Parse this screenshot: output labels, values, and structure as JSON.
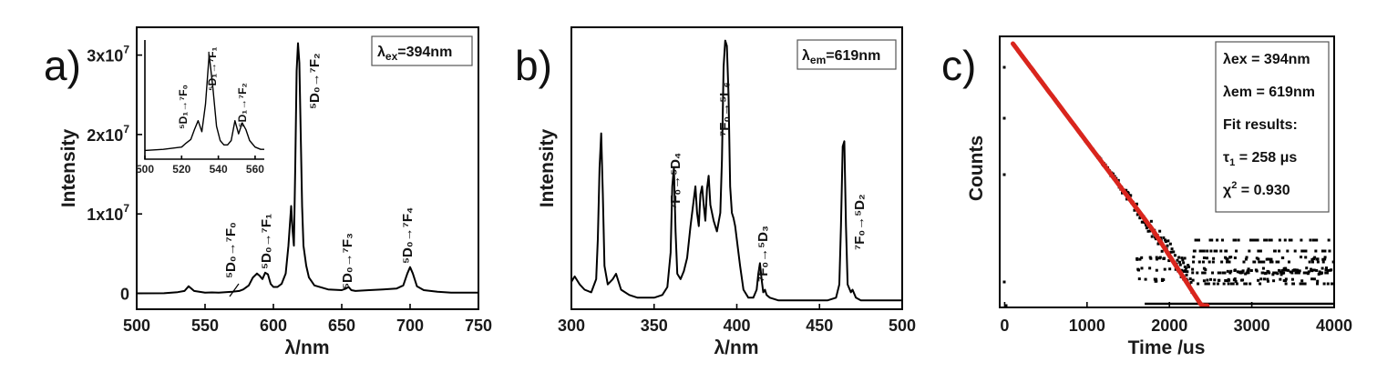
{
  "chart_data": [
    {
      "type": "line",
      "panel_label": "a)",
      "xlabel": "λ/nm",
      "ylabel": "Intensity",
      "xlim": [
        500,
        750
      ],
      "ylim": [
        -2000000,
        33500000
      ],
      "xticks": [
        "500",
        "550",
        "600",
        "650",
        "700",
        "750"
      ],
      "yticks": [
        {
          "value": 0,
          "base": "0",
          "exp": ""
        },
        {
          "value": 10000000,
          "base": "1x10",
          "exp": "7"
        },
        {
          "value": 20000000,
          "base": "2x10",
          "exp": "7"
        },
        {
          "value": 30000000,
          "base": "3x10",
          "exp": "7"
        }
      ],
      "legend": {
        "prefix": "λ",
        "sub": "ex",
        "suffix": "=394nm"
      },
      "series": [
        {
          "x": [
            500,
            520,
            530,
            535,
            538,
            542,
            550,
            555,
            560,
            570,
            575,
            578,
            582,
            585,
            588,
            590,
            592,
            594,
            596,
            598,
            600,
            603,
            606,
            609,
            611,
            613,
            614,
            615,
            616,
            617,
            618,
            619,
            620,
            621,
            622,
            624,
            626,
            630,
            640,
            650,
            653,
            655,
            657,
            660,
            670,
            680,
            690,
            695,
            698,
            700,
            702,
            705,
            710,
            720,
            730,
            750
          ],
          "y": [
            0,
            20000,
            150000,
            300000,
            900000,
            300000,
            100000,
            120000,
            100000,
            200000,
            300000,
            500000,
            1000000,
            2000000,
            2500000,
            2200000,
            1800000,
            2600000,
            2400000,
            1200000,
            800000,
            800000,
            1200000,
            2500000,
            6000000,
            11000000,
            8000000,
            6000000,
            16000000,
            28000000,
            31500000,
            29000000,
            20000000,
            11000000,
            6000000,
            3500000,
            2000000,
            1000000,
            500000,
            400000,
            600000,
            800000,
            400000,
            300000,
            400000,
            500000,
            600000,
            1000000,
            2500000,
            3300000,
            2500000,
            900000,
            400000,
            200000,
            100000,
            100000
          ]
        }
      ],
      "annotations": [
        {
          "label": "⁵D₀→⁷F₀"
        },
        {
          "label": "⁵D₀→⁷F₁"
        },
        {
          "label": "⁵D₀→⁷F₂"
        },
        {
          "label": "⁵D₀→⁷F₃"
        },
        {
          "label": "⁵D₀→⁷F₄"
        }
      ],
      "inset": {
        "type": "line",
        "xlim": [
          500,
          565
        ],
        "xticks": [
          "500",
          "520",
          "540",
          "560"
        ],
        "series": [
          {
            "x": [
              500,
              510,
              515,
              520,
              522,
              525,
              527,
              529,
              531,
              533,
              535,
              537,
              539,
              541,
              543,
              545,
              547,
              549,
              551,
              553,
              555,
              557,
              560,
              563,
              565
            ],
            "y": [
              0.03,
              0.04,
              0.05,
              0.06,
              0.09,
              0.13,
              0.22,
              0.3,
              0.2,
              0.45,
              0.9,
              0.6,
              0.25,
              0.12,
              0.08,
              0.08,
              0.12,
              0.3,
              0.18,
              0.28,
              0.22,
              0.12,
              0.06,
              0.04,
              0.04
            ]
          }
        ],
        "annotations": [
          {
            "label": "⁵D₁→⁷F₀"
          },
          {
            "label": "⁵D₁→⁷F₁"
          },
          {
            "label": "⁵D₁→⁷F₂"
          }
        ]
      }
    },
    {
      "type": "line",
      "panel_label": "b)",
      "xlabel": "λ/nm",
      "ylabel": "Intensity",
      "xlim": [
        300,
        500
      ],
      "ylim": [
        0,
        1.05
      ],
      "xticks": [
        "300",
        "350",
        "400",
        "450",
        "500"
      ],
      "legend": {
        "prefix": "λ",
        "sub": "em",
        "suffix": "=619nm"
      },
      "series": [
        {
          "x": [
            300,
            302,
            305,
            308,
            312,
            315,
            316,
            317,
            318,
            319,
            320,
            322,
            325,
            327,
            330,
            335,
            340,
            345,
            350,
            355,
            358,
            360,
            361,
            362,
            363,
            364,
            366,
            368,
            370,
            372,
            374,
            375,
            376,
            377,
            378,
            379,
            380,
            381,
            382,
            383,
            384,
            386,
            388,
            390,
            391,
            392,
            393,
            394,
            395,
            396,
            397,
            398,
            399,
            400,
            402,
            404,
            407,
            410,
            412,
            413,
            414,
            415,
            416,
            417,
            418,
            420,
            425,
            430,
            440,
            450,
            455,
            460,
            462,
            463,
            464,
            465,
            466,
            467,
            469,
            470,
            472,
            475,
            480,
            490,
            500
          ],
          "y": [
            0.09,
            0.11,
            0.08,
            0.06,
            0.05,
            0.1,
            0.25,
            0.52,
            0.65,
            0.42,
            0.15,
            0.08,
            0.1,
            0.12,
            0.06,
            0.04,
            0.03,
            0.03,
            0.03,
            0.04,
            0.07,
            0.2,
            0.45,
            0.52,
            0.28,
            0.12,
            0.1,
            0.13,
            0.18,
            0.3,
            0.4,
            0.45,
            0.35,
            0.3,
            0.42,
            0.45,
            0.38,
            0.32,
            0.44,
            0.49,
            0.38,
            0.32,
            0.28,
            0.35,
            0.55,
            0.9,
            1.0,
            0.98,
            0.8,
            0.45,
            0.35,
            0.33,
            0.3,
            0.25,
            0.15,
            0.06,
            0.03,
            0.03,
            0.06,
            0.12,
            0.16,
            0.1,
            0.05,
            0.06,
            0.04,
            0.03,
            0.02,
            0.02,
            0.02,
            0.02,
            0.02,
            0.03,
            0.08,
            0.3,
            0.6,
            0.62,
            0.3,
            0.08,
            0.05,
            0.06,
            0.03,
            0.02,
            0.02,
            0.02,
            0.02
          ]
        }
      ],
      "annotations": [
        {
          "label": "⁷F₀→⁵D₄"
        },
        {
          "label": "⁷F₀→⁵L₆"
        },
        {
          "label": "⁷F₀→⁵D₃"
        },
        {
          "label": "⁷F₀→⁵D₂"
        }
      ]
    },
    {
      "type": "scatter",
      "panel_label": "c)",
      "xlabel": "Time /us",
      "ylabel": "Counts",
      "xlim": [
        -60,
        4000
      ],
      "xticks": [
        "0",
        "1000",
        "2000",
        "3000",
        "4000"
      ],
      "yscale": "log",
      "legend_lines": [
        {
          "main": "λex = 394nm"
        },
        {
          "main": "λem = 619nm"
        },
        {
          "main": "Fit results:"
        },
        {
          "main": "τ",
          "sub": "1",
          "rest": " = 258 μs"
        },
        {
          "main": "χ",
          "sup": "2",
          "rest": " = 0.930"
        }
      ],
      "decay": {
        "t0": 100,
        "tau": 258,
        "n_points": 420,
        "t_end": 4000
      },
      "fit": {
        "color": "#d9251d",
        "t_start": 100,
        "t_end": 2480,
        "tau": 258
      },
      "colors": {
        "data": "#000000",
        "fit": "#d9251d"
      }
    }
  ]
}
